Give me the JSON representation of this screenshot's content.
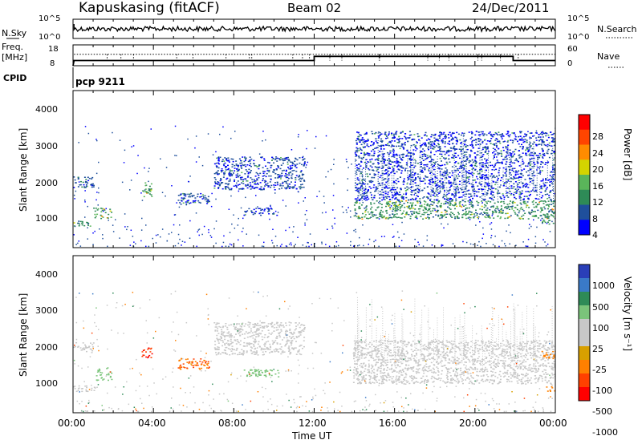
{
  "header": {
    "station": "Kapuskasing (fitACF)",
    "beam": "Beam 02",
    "date": "24/Dec/2011"
  },
  "noise_panel": {
    "left_label": "N.Sky",
    "right_label": "N.Search",
    "left_ticks": [
      "10^5",
      "10^0"
    ],
    "right_ticks": [
      "10^5",
      "10^0"
    ]
  },
  "freq_panel": {
    "left_label_line1": "Freq.",
    "left_label_line2": "[MHz]",
    "left_ticks": [
      "18",
      "8"
    ],
    "right_label": "Nave",
    "right_ticks": [
      "60",
      "0"
    ]
  },
  "cpid_panel": {
    "label": "CPID",
    "program": "pcp 9211"
  },
  "power_panel": {
    "ylabel": "Slant Range [km]",
    "yticks": [
      "4000",
      "3000",
      "2000",
      "1000"
    ],
    "colorbar_label": "Power [dB]",
    "colorbar_ticks": [
      "28",
      "24",
      "20",
      "16",
      "12",
      "8",
      "4"
    ]
  },
  "velocity_panel": {
    "ylabel": "Slant Range [km]",
    "yticks": [
      "4000",
      "3000",
      "2000",
      "1000"
    ],
    "colorbar_label": "Velocity [m s⁻¹]",
    "colorbar_ticks": [
      "1000",
      "500",
      "100",
      "25",
      "-25",
      "-100",
      "-500",
      "-1000"
    ]
  },
  "x_axis": {
    "label": "Time UT",
    "ticks": [
      "00:00",
      "04:00",
      "08:00",
      "12:00",
      "16:00",
      "20:00",
      "00:00"
    ]
  },
  "colors": {
    "power_scale": [
      "#0000ff",
      "#1f4f9c",
      "#2e8b57",
      "#5ab55a",
      "#d4d400",
      "#ff8c00",
      "#ff4500",
      "#ff0000"
    ],
    "velocity_scale": [
      "#2a3fb8",
      "#3a7ac8",
      "#2e8b57",
      "#7ac47a",
      "#c8c8c8",
      "#c8c8c8",
      "#d8a000",
      "#ff8000",
      "#ff4000",
      "#ff0000"
    ]
  },
  "chart_data": [
    {
      "type": "line",
      "name": "noise",
      "x_unit": "hours UT",
      "xlim": [
        0,
        24
      ],
      "series": [
        {
          "name": "N.Sky",
          "x": [
            0,
            0.05,
            1,
            2,
            3,
            4,
            5,
            6,
            7,
            8,
            9,
            10,
            11,
            12,
            13,
            14,
            15,
            16,
            17,
            18,
            19,
            20,
            21,
            22,
            23,
            24
          ],
          "y_frac": [
            0.0,
            0.75,
            0.55,
            0.5,
            0.55,
            0.5,
            0.55,
            0.48,
            0.52,
            0.5,
            0.45,
            0.48,
            0.4,
            0.5,
            0.52,
            0.5,
            0.55,
            0.48,
            0.4,
            0.5,
            0.55,
            0.5,
            0.55,
            0.5,
            0.5,
            0.4
          ]
        }
      ]
    },
    {
      "type": "line",
      "name": "frequency_nave",
      "x_unit": "hours UT",
      "xlim": [
        0,
        24
      ],
      "series": [
        {
          "name": "Freq.",
          "x": [
            0,
            0.05,
            12,
            12,
            21.9,
            21.9,
            24
          ],
          "y": [
            8,
            10.5,
            10.5,
            12.5,
            12.5,
            10.5,
            10.5
          ],
          "ylim": [
            8,
            18
          ]
        },
        {
          "name": "Nave",
          "x": [
            0,
            24
          ],
          "y": [
            33,
            33
          ],
          "ylim": [
            0,
            60
          ]
        }
      ]
    },
    {
      "type": "heatmap",
      "name": "power",
      "x_unit": "hours UT",
      "y_unit": "km",
      "xlim": [
        0,
        24
      ],
      "ylim": [
        200,
        4500
      ],
      "zlim": [
        0,
        30
      ],
      "regions": [
        {
          "x": [
            0.0,
            0.9
          ],
          "y": [
            800,
            950
          ],
          "z": 10
        },
        {
          "x": [
            0.0,
            1.0
          ],
          "y": [
            1850,
            2150
          ],
          "z": 6
        },
        {
          "x": [
            1.0,
            1.9
          ],
          "y": [
            1000,
            1300
          ],
          "z": 12
        },
        {
          "x": [
            3.4,
            3.9
          ],
          "y": [
            1600,
            2000
          ],
          "z": 12
        },
        {
          "x": [
            5.2,
            6.8
          ],
          "y": [
            1400,
            1700
          ],
          "z": 5
        },
        {
          "x": [
            7.0,
            11.5
          ],
          "y": [
            1800,
            2700
          ],
          "z": 5
        },
        {
          "x": [
            8.4,
            10.2
          ],
          "y": [
            1100,
            1300
          ],
          "z": 5
        },
        {
          "x": [
            13.9,
            24.0
          ],
          "y": [
            1000,
            1500
          ],
          "z": 10
        },
        {
          "x": [
            14.0,
            24.0
          ],
          "y": [
            1500,
            3400
          ],
          "z": 4
        },
        {
          "x": [
            23.3,
            24.0
          ],
          "y": [
            850,
            1100
          ],
          "z": 10
        }
      ]
    },
    {
      "type": "heatmap",
      "name": "velocity",
      "x_unit": "hours UT",
      "y_unit": "km",
      "xlim": [
        0,
        24
      ],
      "ylim": [
        200,
        4500
      ],
      "zlim": [
        -1000,
        1000
      ],
      "regions": [
        {
          "x": [
            0.0,
            1.1
          ],
          "y": [
            800,
            950
          ],
          "z": 0
        },
        {
          "x": [
            0.0,
            1.0
          ],
          "y": [
            1850,
            2150
          ],
          "z": 0
        },
        {
          "x": [
            1.1,
            1.9
          ],
          "y": [
            1100,
            1450
          ],
          "z": 60
        },
        {
          "x": [
            3.4,
            3.9
          ],
          "y": [
            1700,
            2000
          ],
          "z": -1000
        },
        {
          "x": [
            5.2,
            6.8
          ],
          "y": [
            1400,
            1700
          ],
          "z": -500
        },
        {
          "x": [
            7.0,
            11.5
          ],
          "y": [
            1800,
            2700
          ],
          "z": 0
        },
        {
          "x": [
            8.4,
            10.2
          ],
          "y": [
            1200,
            1400
          ],
          "z": 60
        },
        {
          "x": [
            13.9,
            24.0
          ],
          "y": [
            1000,
            2200
          ],
          "z": 0
        },
        {
          "x": [
            23.3,
            24.0
          ],
          "y": [
            1700,
            1900
          ],
          "z": -300
        },
        {
          "x": [
            23.4,
            24.0
          ],
          "y": [
            800,
            950
          ],
          "z": -300
        }
      ]
    }
  ]
}
